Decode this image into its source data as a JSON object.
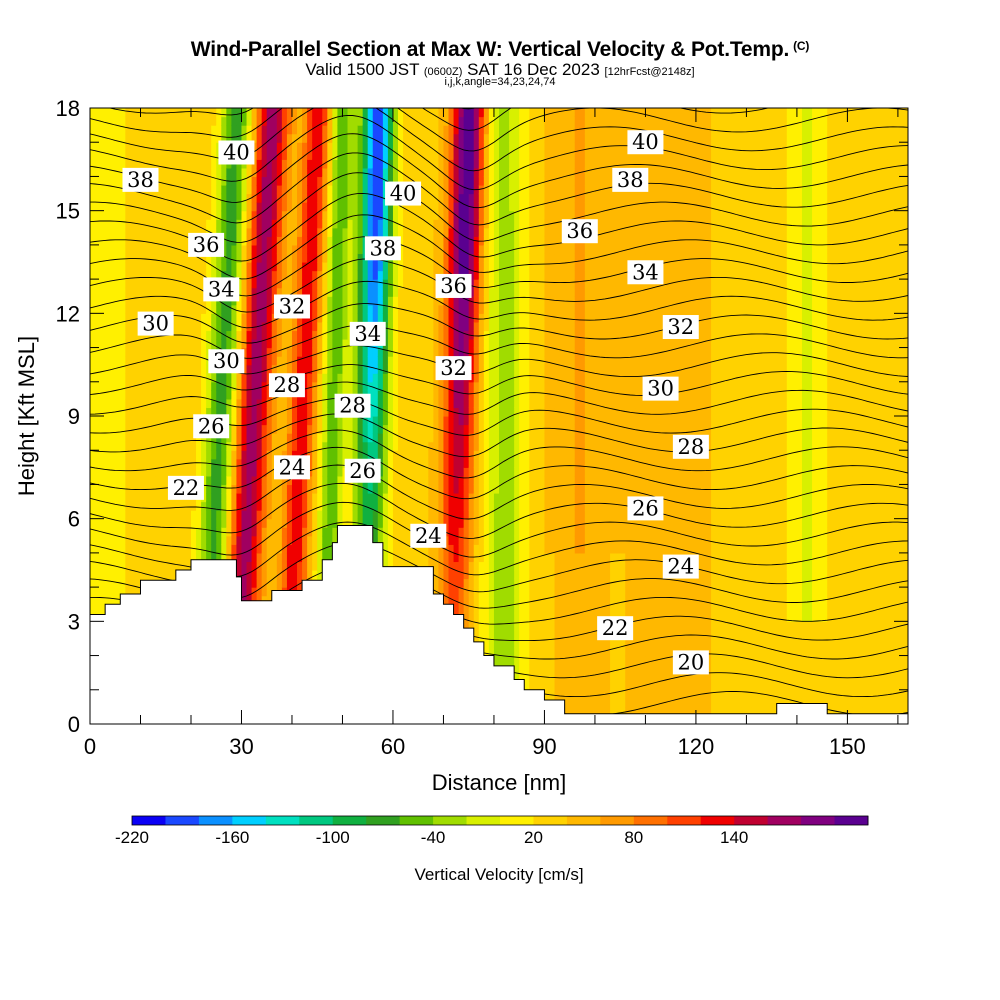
{
  "header": {
    "title": "Wind-Parallel Section at Max W: Vertical Velocity & Pot.Temp.",
    "title_suffix": "(C)",
    "subtitle_prefix": "Valid 1500 JST",
    "subtitle_utc": "(0600Z)",
    "subtitle_date": "SAT 16 Dec 2023",
    "subtitle_fcst": "[12hrFcst@2148z]",
    "subtitle2": "i,j,k,angle=34,23,24,74"
  },
  "chart_data": {
    "type": "heatmap",
    "xlabel": "Distance [nm]",
    "ylabel": "Height [Kft MSL]",
    "xlim": [
      0,
      162
    ],
    "ylim": [
      0,
      18
    ],
    "x_ticks": [
      "0",
      "30",
      "60",
      "90",
      "120",
      "150"
    ],
    "y_ticks": [
      "0",
      "3",
      "6",
      "9",
      "12",
      "15",
      "18"
    ],
    "colorbar": {
      "label": "Vertical Velocity [cm/s]",
      "tick_labels": [
        "-220",
        "-160",
        "-100",
        "-40",
        "20",
        "80",
        "140"
      ],
      "colors": [
        "#0a00f5",
        "#1a48ff",
        "#0a90ff",
        "#00cfff",
        "#00e0c0",
        "#00c880",
        "#10b040",
        "#30a020",
        "#60c000",
        "#a0dc00",
        "#d8f000",
        "#fff000",
        "#ffd200",
        "#ffb800",
        "#ff9a00",
        "#ff7000",
        "#ff4000",
        "#f00000",
        "#c00030",
        "#a00060",
        "#800080",
        "#5a0090"
      ]
    },
    "terrain": [
      [
        0,
        3.2
      ],
      [
        3,
        3.5
      ],
      [
        6,
        3.8
      ],
      [
        10,
        4.2
      ],
      [
        17,
        4.5
      ],
      [
        20,
        4.8
      ],
      [
        26,
        4.8
      ],
      [
        29,
        4.3
      ],
      [
        30,
        3.6
      ],
      [
        36,
        3.9
      ],
      [
        42,
        4.2
      ],
      [
        46,
        4.8
      ],
      [
        48,
        5.3
      ],
      [
        49,
        5.8
      ],
      [
        55,
        5.8
      ],
      [
        56,
        5.3
      ],
      [
        58,
        4.6
      ],
      [
        66,
        4.6
      ],
      [
        68,
        3.8
      ],
      [
        70,
        3.5
      ],
      [
        72,
        3.2
      ],
      [
        74,
        2.8
      ],
      [
        76,
        2.4
      ],
      [
        78,
        2.0
      ],
      [
        80,
        1.7
      ],
      [
        84,
        1.3
      ],
      [
        86,
        1.0
      ],
      [
        90,
        0.7
      ],
      [
        94,
        0.3
      ],
      [
        135,
        0.3
      ],
      [
        136,
        0.6
      ],
      [
        145,
        0.6
      ],
      [
        146,
        0.3
      ],
      [
        162,
        0.3
      ]
    ],
    "theta_labels": [
      {
        "text": "40",
        "x": 29,
        "y": 16.7
      },
      {
        "text": "38",
        "x": 10,
        "y": 15.9
      },
      {
        "text": "36",
        "x": 23,
        "y": 14.0
      },
      {
        "text": "34",
        "x": 26,
        "y": 12.7
      },
      {
        "text": "30",
        "x": 13,
        "y": 11.7
      },
      {
        "text": "30",
        "x": 27,
        "y": 10.6
      },
      {
        "text": "32",
        "x": 40,
        "y": 12.2
      },
      {
        "text": "28",
        "x": 39,
        "y": 9.9
      },
      {
        "text": "26",
        "x": 24,
        "y": 8.7
      },
      {
        "text": "22",
        "x": 19,
        "y": 6.9
      },
      {
        "text": "24",
        "x": 40,
        "y": 7.5
      },
      {
        "text": "40",
        "x": 62,
        "y": 15.5
      },
      {
        "text": "38",
        "x": 58,
        "y": 13.9
      },
      {
        "text": "34",
        "x": 55,
        "y": 11.4
      },
      {
        "text": "28",
        "x": 52,
        "y": 9.3
      },
      {
        "text": "26",
        "x": 54,
        "y": 7.4
      },
      {
        "text": "36",
        "x": 72,
        "y": 12.8
      },
      {
        "text": "32",
        "x": 72,
        "y": 10.4
      },
      {
        "text": "24",
        "x": 67,
        "y": 5.5
      },
      {
        "text": "40",
        "x": 110,
        "y": 17.0
      },
      {
        "text": "38",
        "x": 107,
        "y": 15.9
      },
      {
        "text": "36",
        "x": 97,
        "y": 14.4
      },
      {
        "text": "34",
        "x": 110,
        "y": 13.2
      },
      {
        "text": "32",
        "x": 117,
        "y": 11.6
      },
      {
        "text": "30",
        "x": 113,
        "y": 9.8
      },
      {
        "text": "28",
        "x": 119,
        "y": 8.1
      },
      {
        "text": "26",
        "x": 110,
        "y": 6.3
      },
      {
        "text": "24",
        "x": 117,
        "y": 4.6
      },
      {
        "text": "22",
        "x": 104,
        "y": 2.8
      },
      {
        "text": "20",
        "x": 119,
        "y": 1.8
      }
    ]
  }
}
